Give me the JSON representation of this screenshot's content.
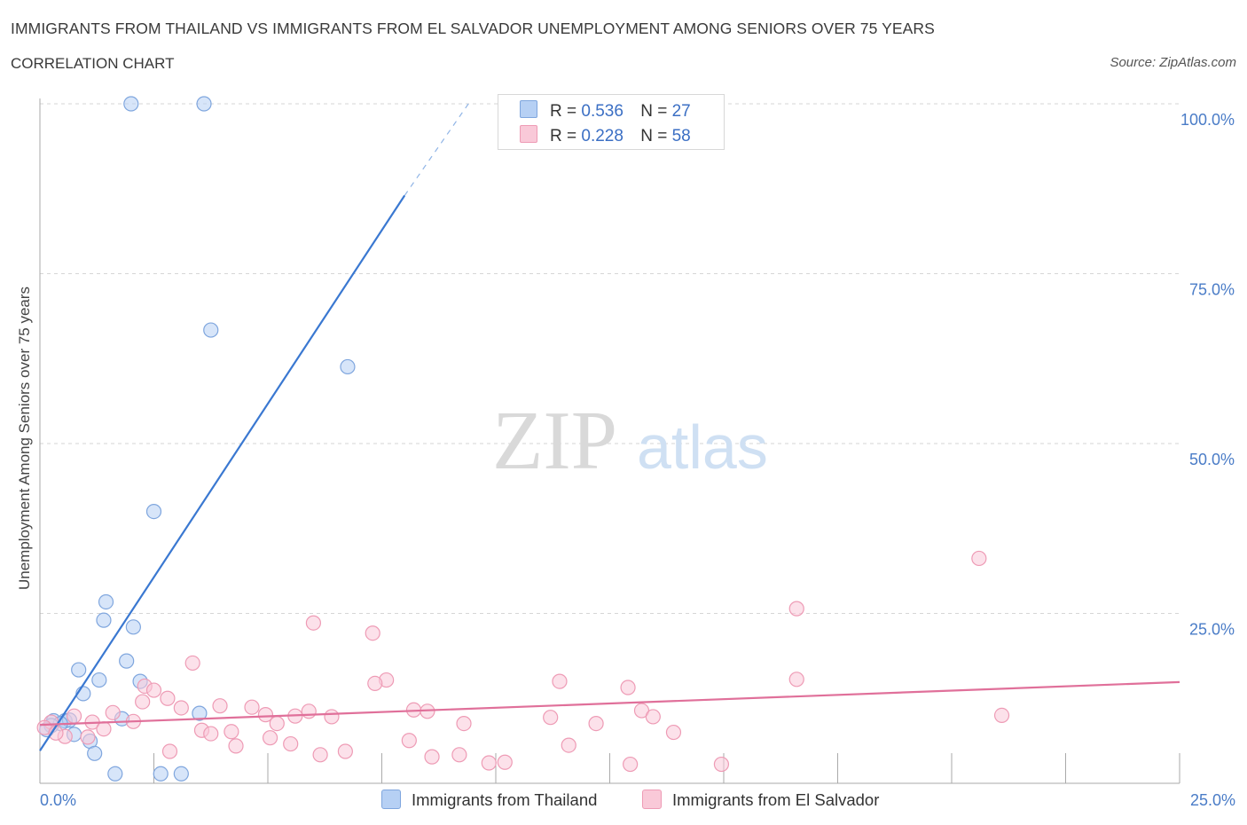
{
  "title": "IMMIGRANTS FROM THAILAND VS IMMIGRANTS FROM EL SALVADOR UNEMPLOYMENT AMONG SENIORS OVER 75 YEARS",
  "subtitle": "CORRELATION CHART",
  "source": "Source: ZipAtlas.com",
  "watermark": {
    "zip": "ZIP",
    "atlas": "atlas"
  },
  "legend": {
    "r_label": "R =",
    "n_label": "N =",
    "entries": [
      {
        "name": "Immigrants from Thailand",
        "r": "0.536",
        "n": "27",
        "fill": "#b6d0f4",
        "stroke": "#7fa6de"
      },
      {
        "name": "Immigrants from El Salvador",
        "r": "0.228",
        "n": "58",
        "fill": "#f9c9d8",
        "stroke": "#ee9bb5"
      }
    ]
  },
  "chart_data": {
    "type": "scatter",
    "title": "IMMIGRANTS FROM THAILAND VS IMMIGRANTS FROM EL SALVADOR UNEMPLOYMENT AMONG SENIORS OVER 75 YEARS",
    "xlabel": "",
    "ylabel": "Unemployment Among Seniors over 75 years",
    "xlim": [
      0,
      25
    ],
    "ylim": [
      0,
      100
    ],
    "x_tick_labels": [
      "0.0%",
      "25.0%"
    ],
    "y_tick_labels": [
      "25.0%",
      "50.0%",
      "75.0%",
      "100.0%"
    ],
    "y_ticks": [
      25,
      50,
      75,
      100
    ],
    "grid": true,
    "series": [
      {
        "name": "Immigrants from Thailand",
        "color": "#7fa6de",
        "fill": "#b6d0f4",
        "line_color": "#3a78d1",
        "trend": {
          "x0": 0,
          "y0": 4.8,
          "x1": 8.0,
          "y1": 86.5,
          "dash_x1": 9.4,
          "dash_y1": 100
        },
        "points": [
          [
            2.0,
            100
          ],
          [
            3.6,
            100
          ],
          [
            3.75,
            66.7
          ],
          [
            6.75,
            61.3
          ],
          [
            2.5,
            40.0
          ],
          [
            1.45,
            26.7
          ],
          [
            1.4,
            24.0
          ],
          [
            2.05,
            23.0
          ],
          [
            0.85,
            16.7
          ],
          [
            1.9,
            18.0
          ],
          [
            1.3,
            15.2
          ],
          [
            2.2,
            15.0
          ],
          [
            0.95,
            13.2
          ],
          [
            3.5,
            10.3
          ],
          [
            1.8,
            9.5
          ],
          [
            0.3,
            9.2
          ],
          [
            0.55,
            9.2
          ],
          [
            0.65,
            9.3
          ],
          [
            0.45,
            8.8
          ],
          [
            0.25,
            8.5
          ],
          [
            0.15,
            7.9
          ],
          [
            0.75,
            7.2
          ],
          [
            1.1,
            6.2
          ],
          [
            1.2,
            4.4
          ],
          [
            1.65,
            1.4
          ],
          [
            2.65,
            1.4
          ],
          [
            3.1,
            1.4
          ]
        ]
      },
      {
        "name": "Immigrants from El Salvador",
        "color": "#ee9bb5",
        "fill": "#f9c9d8",
        "line_color": "#e0709a",
        "trend": {
          "x0": 0,
          "y0": 8.6,
          "x1": 25,
          "y1": 14.9
        },
        "points": [
          [
            20.6,
            33.1
          ],
          [
            16.6,
            25.7
          ],
          [
            6.0,
            23.6
          ],
          [
            7.3,
            22.1
          ],
          [
            3.35,
            17.7
          ],
          [
            7.6,
            15.2
          ],
          [
            11.4,
            15.0
          ],
          [
            16.6,
            15.3
          ],
          [
            7.35,
            14.7
          ],
          [
            12.9,
            14.1
          ],
          [
            2.3,
            14.3
          ],
          [
            2.5,
            13.7
          ],
          [
            2.8,
            12.5
          ],
          [
            2.25,
            12.0
          ],
          [
            3.95,
            11.4
          ],
          [
            4.65,
            11.2
          ],
          [
            3.1,
            11.1
          ],
          [
            1.6,
            10.4
          ],
          [
            4.95,
            10.1
          ],
          [
            5.9,
            10.6
          ],
          [
            5.6,
            9.9
          ],
          [
            6.4,
            9.8
          ],
          [
            8.2,
            10.8
          ],
          [
            8.5,
            10.6
          ],
          [
            11.2,
            9.7
          ],
          [
            13.2,
            10.7
          ],
          [
            13.45,
            9.8
          ],
          [
            21.1,
            10.0
          ],
          [
            0.75,
            9.9
          ],
          [
            1.15,
            9.0
          ],
          [
            2.05,
            9.1
          ],
          [
            5.2,
            8.8
          ],
          [
            9.3,
            8.8
          ],
          [
            12.2,
            8.8
          ],
          [
            1.4,
            8.0
          ],
          [
            0.25,
            9.0
          ],
          [
            3.55,
            7.8
          ],
          [
            3.75,
            7.3
          ],
          [
            4.2,
            7.6
          ],
          [
            5.05,
            6.7
          ],
          [
            13.9,
            7.5
          ],
          [
            0.55,
            6.9
          ],
          [
            1.05,
            6.8
          ],
          [
            4.3,
            5.5
          ],
          [
            5.5,
            5.8
          ],
          [
            8.1,
            6.3
          ],
          [
            11.6,
            5.6
          ],
          [
            2.85,
            4.7
          ],
          [
            6.15,
            4.2
          ],
          [
            6.7,
            4.7
          ],
          [
            8.6,
            3.9
          ],
          [
            9.2,
            4.2
          ],
          [
            9.85,
            3.0
          ],
          [
            10.2,
            3.1
          ],
          [
            12.95,
            2.8
          ],
          [
            14.95,
            2.8
          ],
          [
            0.1,
            8.2
          ],
          [
            0.35,
            7.4
          ]
        ]
      }
    ]
  }
}
